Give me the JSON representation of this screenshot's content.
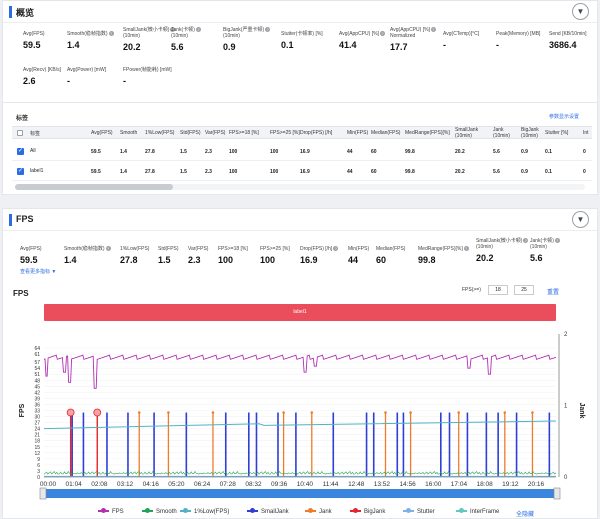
{
  "overview": {
    "title": "概览",
    "toggle_icon": "▼",
    "metrics": [
      {
        "label": "Avg(FPS)",
        "value": "59.5",
        "help": false
      },
      {
        "label": "Smooth(稳帧指数)",
        "value": "1.4",
        "help": true
      },
      {
        "label": "SmallJank(微小卡顿)",
        "label2": "(10min)",
        "value": "20.2",
        "help": true
      },
      {
        "label": "Jank(卡顿)",
        "label2": "(10min)",
        "value": "5.6",
        "help": true
      },
      {
        "label": "BigJank(严重卡顿)",
        "label2": "(10min)",
        "value": "0.9",
        "help": true
      },
      {
        "label": "Stutter(卡顿率) [%]",
        "value": "0.1",
        "help": false
      },
      {
        "label": "Avg(AppCPU) [%]",
        "value": "41.4",
        "help": true
      },
      {
        "label": "Avg(AppCPU) [%]",
        "label2": "Normalized",
        "value": "17.7",
        "help": true
      },
      {
        "label": "Avg(CTemp)[°C]",
        "value": "-",
        "help": false
      },
      {
        "label": "Peak(Memory) [MB]",
        "value": "-",
        "help": false
      },
      {
        "label": "Send [KB/10min]",
        "value": "3686.4",
        "help": false
      },
      {
        "label": "Avg(Recv) [KB/s]",
        "value": "2.6",
        "help": false
      },
      {
        "label": "Avg(Power) [mW]",
        "value": "-",
        "help": false
      },
      {
        "label": "FPower(帧能耗) [mW]",
        "value": "-",
        "help": false
      }
    ]
  },
  "labels_section": {
    "title": "标签",
    "settings_link": "参数显示设置",
    "columns": [
      "标签",
      "Avg(FPS)",
      "Smooth",
      "1%Low(FPS)",
      "Std(FPS)",
      "Var(FPS)",
      "FPS>=18 [%]",
      "FPS>=25 [%]",
      "Drop(FPS) [/h]",
      "Min(FPS)",
      "Median(FPS)",
      "MedRange(FPS)[%]",
      "SmallJank",
      "Jank",
      "BigJank",
      "Stutter [%]",
      "Int"
    ],
    "col_sub": [
      "",
      "",
      "",
      "",
      "",
      "",
      "",
      "",
      "",
      "",
      "",
      "",
      "(10min)",
      "(10min)",
      "(10min)",
      "",
      ""
    ],
    "rows": [
      {
        "name": "All",
        "values": [
          "59.5",
          "1.4",
          "27.8",
          "1.5",
          "2.3",
          "100",
          "100",
          "16.9",
          "44",
          "60",
          "99.8",
          "20.2",
          "5.6",
          "0.9",
          "0.1",
          "0"
        ]
      },
      {
        "name": "label1",
        "values": [
          "59.5",
          "1.4",
          "27.8",
          "1.5",
          "2.3",
          "100",
          "100",
          "16.9",
          "44",
          "60",
          "99.8",
          "20.2",
          "5.6",
          "0.9",
          "0.1",
          "0"
        ]
      }
    ]
  },
  "fps": {
    "title": "FPS",
    "toggle_icon": "▼",
    "metrics": [
      {
        "label": "Avg(FPS)",
        "value": "59.5",
        "help": false
      },
      {
        "label": "Smooth(稳帧指数)",
        "value": "1.4",
        "help": true
      },
      {
        "label": "1%Low(FPS)",
        "value": "27.8",
        "help": false
      },
      {
        "label": "Std(FPS)",
        "value": "1.5",
        "help": false
      },
      {
        "label": "Var(FPS)",
        "value": "2.3",
        "help": false
      },
      {
        "label": "FPS>=18 [%]",
        "value": "100",
        "help": false
      },
      {
        "label": "FPS>=25 [%]",
        "value": "100",
        "help": false
      },
      {
        "label": "Drop(FPS) [/h]",
        "value": "16.9",
        "help": true
      },
      {
        "label": "Min(FPS)",
        "value": "44",
        "help": false
      },
      {
        "label": "Median(FPS)",
        "value": "60",
        "help": false
      },
      {
        "label": "MedRange(FPS)[%]",
        "value": "99.8",
        "help": true
      },
      {
        "label": "SmallJank(微小卡顿)",
        "label2": "(10min)",
        "value": "20.2",
        "help": true
      },
      {
        "label": "Jank(卡顿)",
        "label2": "(10min)",
        "value": "5.6",
        "help": true
      }
    ],
    "more_link": "查看更多指标 ▼",
    "chart_title": "FPS",
    "threshold_label": "FPS(>=)",
    "threshold_values": [
      "18",
      "25"
    ],
    "reset_label": "重置",
    "band_label": "label1"
  },
  "chart_data": {
    "type": "line",
    "title": "FPS",
    "ylabel": "FPS",
    "y2label": "Jank",
    "ylim": [
      0,
      66
    ],
    "y2lim": [
      0,
      2
    ],
    "yticks": [
      "0",
      "3",
      "6",
      "9",
      "12",
      "15",
      "18",
      "21",
      "24",
      "27",
      "30",
      "33",
      "36",
      "39",
      "42",
      "45",
      "48",
      "51",
      "54",
      "57",
      "61",
      "64"
    ],
    "y2ticks": [
      "0",
      "1",
      "2"
    ],
    "xticks": [
      "00:00",
      "01:04",
      "02:08",
      "03:12",
      "04:16",
      "05:20",
      "06:24",
      "07:28",
      "08:32",
      "09:36",
      "10:40",
      "11:44",
      "12:48",
      "13:52",
      "14:56",
      "16:00",
      "17:04",
      "18:08",
      "19:12",
      "20:16"
    ],
    "series": [
      {
        "name": "FPS",
        "color": "#b22fb4",
        "baseline": 59.5,
        "dips": [
          [
            0.5,
            50
          ],
          [
            4,
            52
          ],
          [
            5,
            47
          ],
          [
            10,
            44
          ],
          [
            51,
            52
          ],
          [
            53,
            55
          ],
          [
            83,
            54
          ],
          [
            87,
            51
          ]
        ]
      },
      {
        "name": "Smooth",
        "color": "#22a35a",
        "baseline": 1.4
      },
      {
        "name": "1%Low(FPS)",
        "color": "#4fb3c8",
        "start": 24,
        "end": 27.8
      },
      {
        "name": "SmallJank",
        "color": "#2f3fd6",
        "events": [
          5.5,
          7.7,
          12.3,
          16.4,
          21.5,
          27.8,
          35.5,
          40,
          41.5,
          45.7,
          49.2,
          56.5,
          63,
          64.4,
          69,
          70.2,
          77.5,
          79.2,
          82.7,
          86.4,
          88.7,
          92.3,
          98.7
        ]
      },
      {
        "name": "Jank",
        "color": "#f07b2a",
        "events": [
          5.2,
          10.4,
          18.6,
          24.3,
          33,
          46.8,
          52.3,
          66.7,
          71.6,
          81,
          90,
          95.4
        ]
      },
      {
        "name": "BigJank",
        "color": "#e8232e",
        "events": [
          5.2,
          10.4
        ]
      },
      {
        "name": "Stutter",
        "color": "#7bb3e8",
        "baseline": 0.1
      },
      {
        "name": "InterFrame",
        "color": "#5fc9c0",
        "baseline": 0
      }
    ],
    "legend": [
      "FPS",
      "Smooth",
      "1%Low(FPS)",
      "SmallJank",
      "Jank",
      "BigJank",
      "Stutter",
      "InterFrame"
    ],
    "hide_all_label": "全隐藏"
  }
}
